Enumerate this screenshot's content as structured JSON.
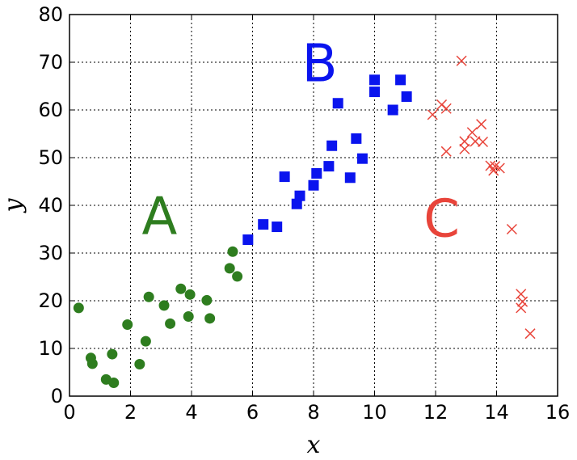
{
  "chart_data": {
    "type": "scatter",
    "title": "",
    "xlabel": "x",
    "ylabel": "y",
    "xlim": [
      0,
      16
    ],
    "ylim": [
      0,
      80
    ],
    "xticks": [
      0,
      2,
      4,
      6,
      8,
      10,
      12,
      14,
      16
    ],
    "yticks": [
      0,
      10,
      20,
      30,
      40,
      50,
      60,
      70,
      80
    ],
    "grid": true,
    "series": [
      {
        "label": "A",
        "marker": "circle",
        "color": "#2e7d1f",
        "points": [
          [
            0.3,
            18.5
          ],
          [
            0.7,
            8.0
          ],
          [
            0.75,
            6.8
          ],
          [
            1.2,
            3.5
          ],
          [
            1.4,
            8.8
          ],
          [
            1.45,
            2.8
          ],
          [
            1.9,
            15.0
          ],
          [
            2.3,
            6.7
          ],
          [
            2.5,
            11.5
          ],
          [
            2.6,
            20.8
          ],
          [
            3.1,
            19.0
          ],
          [
            3.3,
            15.2
          ],
          [
            3.65,
            22.5
          ],
          [
            3.9,
            16.7
          ],
          [
            3.95,
            21.3
          ],
          [
            4.5,
            20.1
          ],
          [
            4.6,
            16.3
          ],
          [
            5.25,
            26.8
          ],
          [
            5.35,
            30.3
          ],
          [
            5.5,
            25.1
          ]
        ]
      },
      {
        "label": "B",
        "marker": "square",
        "color": "#0a14ee",
        "points": [
          [
            5.85,
            32.8
          ],
          [
            6.35,
            36.0
          ],
          [
            6.8,
            35.5
          ],
          [
            7.05,
            46.0
          ],
          [
            7.45,
            40.3
          ],
          [
            7.55,
            42.0
          ],
          [
            8.0,
            44.2
          ],
          [
            8.1,
            46.7
          ],
          [
            8.5,
            48.2
          ],
          [
            8.6,
            52.5
          ],
          [
            8.8,
            61.4
          ],
          [
            9.2,
            45.8
          ],
          [
            9.4,
            54.0
          ],
          [
            9.6,
            49.8
          ],
          [
            10.0,
            66.3
          ],
          [
            10.0,
            63.8
          ],
          [
            10.6,
            60.0
          ],
          [
            10.85,
            66.3
          ],
          [
            11.05,
            62.8
          ]
        ]
      },
      {
        "label": "C",
        "marker": "x",
        "color": "#e8443a",
        "points": [
          [
            11.9,
            59.0
          ],
          [
            12.2,
            61.1
          ],
          [
            12.35,
            60.3
          ],
          [
            12.35,
            51.3
          ],
          [
            12.85,
            70.3
          ],
          [
            12.95,
            51.8
          ],
          [
            12.95,
            53.4
          ],
          [
            13.2,
            55.3
          ],
          [
            13.3,
            53.4
          ],
          [
            13.5,
            57.0
          ],
          [
            13.55,
            53.3
          ],
          [
            13.8,
            48.3
          ],
          [
            13.9,
            47.3
          ],
          [
            13.95,
            48.2
          ],
          [
            14.1,
            47.8
          ],
          [
            14.5,
            35.0
          ],
          [
            14.8,
            21.4
          ],
          [
            14.8,
            18.5
          ],
          [
            14.85,
            19.8
          ],
          [
            15.1,
            13.1
          ]
        ]
      }
    ],
    "annotations": [
      {
        "text": "A",
        "x": 2.95,
        "y": 34.0,
        "color": "#2e7d1f"
      },
      {
        "text": "B",
        "x": 8.2,
        "y": 66.0,
        "color": "#0a14ee"
      },
      {
        "text": "C",
        "x": 12.2,
        "y": 33.5,
        "color": "#e8443a"
      }
    ]
  }
}
